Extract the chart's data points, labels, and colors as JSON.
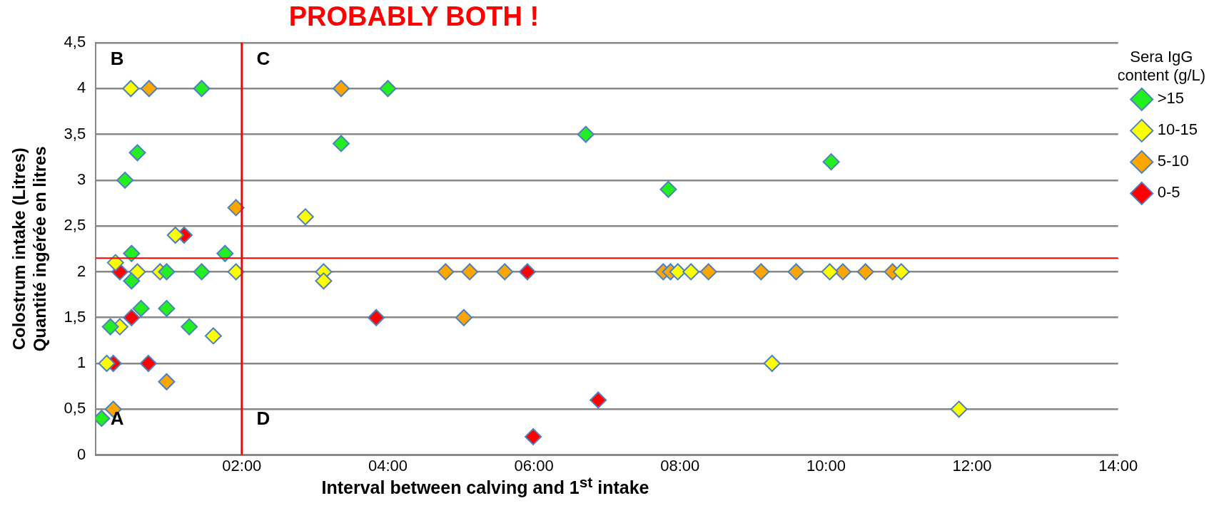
{
  "chart_data": {
    "type": "scatter",
    "title": "PROBABLY BOTH !",
    "xlabel": "Interval between calving and 1$^{st}$ intake",
    "ylabel": "Colostrum intake (Litres)\nQuantité ingérée en litres",
    "legend_title": "Sera IgG content (g/L)",
    "legend": "top right",
    "marker": "diamond",
    "grid": "y",
    "xlim": [
      0,
      14
    ],
    "xticks": [
      {
        "value": 2,
        "label": "02:00"
      },
      {
        "value": 4,
        "label": "04:00"
      },
      {
        "value": 6,
        "label": "06:00"
      },
      {
        "value": 8,
        "label": "08:00"
      },
      {
        "value": 10,
        "label": "10:00"
      },
      {
        "value": 12,
        "label": "12:00"
      },
      {
        "value": 14,
        "label": "14:00"
      }
    ],
    "ylim": [
      0,
      4.5
    ],
    "yticks": [
      0,
      {
        "value": 0.5,
        "label": "0,5"
      },
      1,
      {
        "value": 1.5,
        "label": "1,5"
      },
      2,
      {
        "value": 2.5,
        "label": "2,5"
      },
      3,
      {
        "value": 3.5,
        "label": "3,5"
      },
      4,
      {
        "value": 4.5,
        "label": "4,5"
      }
    ],
    "series": [
      {
        "name": ">15",
        "color": "#22ee22",
        "x": [
          1.45,
          0.57,
          0.4,
          0.49,
          1.77,
          0.97,
          1.45,
          0.49,
          0.62,
          0.97,
          0.2,
          1.28,
          0.08,
          4.0,
          6.71,
          3.36,
          10.07,
          7.84
        ],
        "values": [
          4,
          3.3,
          3,
          2.2,
          2.2,
          2,
          2,
          1.9,
          1.6,
          1.6,
          1.4,
          1.4,
          0.4,
          4,
          3.5,
          3.4,
          3.2,
          2.9
        ]
      },
      {
        "name": "10-15",
        "color": "#ffff00",
        "x": [
          0.48,
          1.09,
          0.27,
          0.57,
          0.88,
          1.92,
          0.33,
          1.61,
          0.15,
          2.87,
          3.12,
          3.12,
          7.97,
          8.15,
          10.05,
          11.03,
          9.26,
          11.82
        ],
        "values": [
          4,
          2.4,
          2.1,
          2,
          2,
          2,
          1.4,
          1.3,
          1,
          2.6,
          2,
          1.9,
          2,
          2,
          2,
          2,
          1,
          0.5
        ]
      },
      {
        "name": "5-10",
        "color": "#ffa500",
        "x": [
          0.73,
          1.92,
          0.97,
          0.24,
          3.36,
          4.79,
          5.12,
          5.6,
          5.04,
          7.77,
          7.87,
          8.39,
          9.11,
          9.59,
          10.23,
          10.54,
          10.91
        ],
        "values": [
          4,
          2.7,
          0.8,
          0.5,
          4,
          2,
          2,
          2,
          1.5,
          2,
          2,
          2,
          2,
          2,
          2,
          2,
          2
        ]
      },
      {
        "name": "0-5",
        "color": "#ff0000",
        "x": [
          1.21,
          0.33,
          0.49,
          0.24,
          0.72,
          5.91,
          3.84,
          6.88,
          5.99
        ],
        "values": [
          2.4,
          2,
          1.5,
          1,
          1,
          2,
          1.5,
          0.6,
          0.2
        ]
      }
    ],
    "ref_lines": [
      {
        "axis": "x",
        "value": 2,
        "color": "#ff0000"
      },
      {
        "axis": "y",
        "value": 2.15,
        "color": "#ff0000"
      }
    ],
    "annotations": [
      "A",
      "B",
      "C",
      "D"
    ]
  }
}
